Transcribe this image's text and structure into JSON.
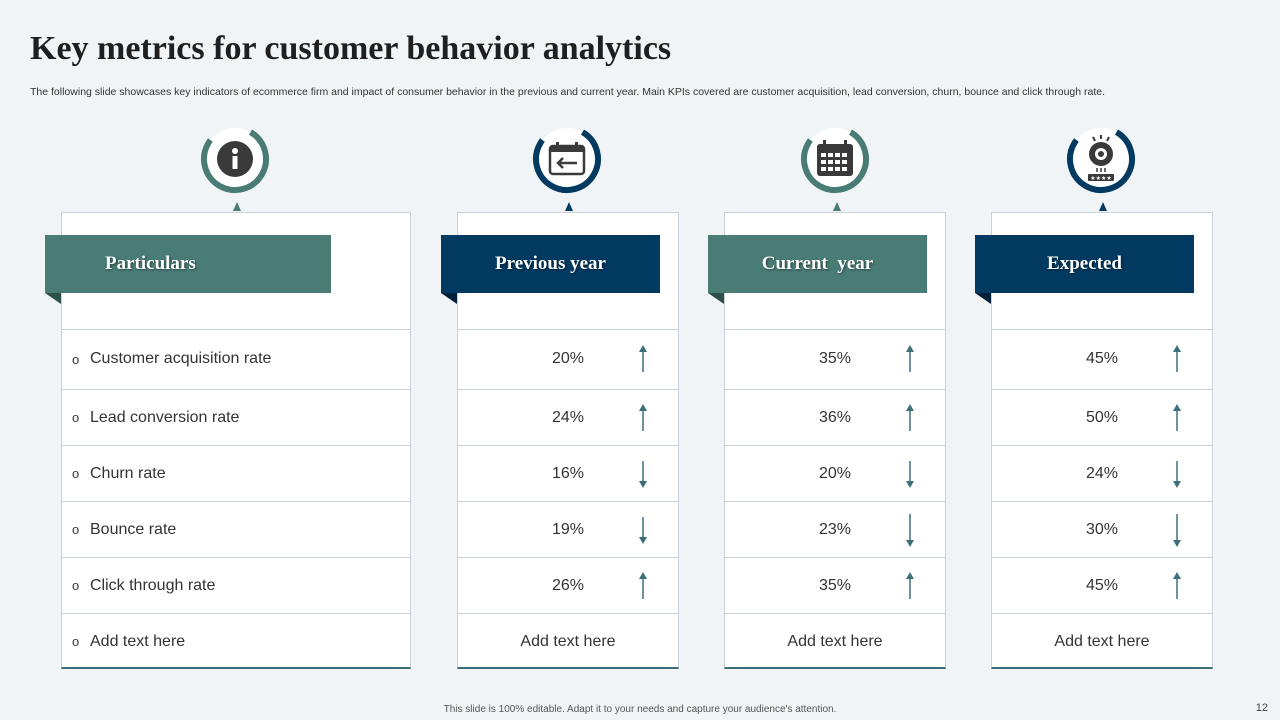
{
  "title": "Key metrics  for customer  behavior analytics",
  "subtitle": "The following slide showcases key indicators of ecommerce firm and impact of consumer behavior in the previous and current year. Main KPIs covered are customer acquisition, lead conversion, churn, bounce and click through rate.",
  "colors": {
    "teal": "#4a7c76",
    "navy": "#033a61"
  },
  "headers": {
    "particulars": "Particulars",
    "previous": "Previous year",
    "current": "Current  year",
    "expected": "Expected"
  },
  "icons": [
    "info-icon",
    "calendar-back-icon",
    "calendar-grid-icon",
    "customer-rating-icon"
  ],
  "rows": [
    {
      "label": "Customer acquisition rate",
      "previous": "20%",
      "current": "35%",
      "expected": "45%",
      "trend": [
        "up",
        "up",
        "up"
      ]
    },
    {
      "label": "Lead conversion rate",
      "previous": "24%",
      "current": "36%",
      "expected": "50%",
      "trend": [
        "up",
        "up",
        "up"
      ]
    },
    {
      "label": "Churn rate",
      "previous": "16%",
      "current": "20%",
      "expected": "24%",
      "trend": [
        "down",
        "down",
        "down"
      ]
    },
    {
      "label": "Bounce rate",
      "previous": "19%",
      "current": "23%",
      "expected": "30%",
      "trend": [
        "down",
        "down",
        "down"
      ]
    },
    {
      "label": "Click through rate",
      "previous": "26%",
      "current": "35%",
      "expected": "45%",
      "trend": [
        "up",
        "up",
        "up"
      ]
    }
  ],
  "add_text": {
    "particulars": "Add text here",
    "previous": "Add text here",
    "current": "Add text here",
    "expected": "Add text here"
  },
  "footer": "This slide is 100% editable.  Adapt it to your needs and capture your audience's attention.",
  "page_number": "12"
}
